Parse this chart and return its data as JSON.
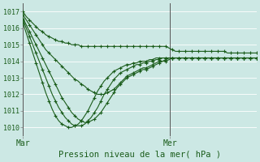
{
  "title": "Pression niveau de la mer( hPa )",
  "bg_color": "#cce8e4",
  "grid_color": "#ffffff",
  "line_color": "#1a5c1a",
  "ylim": [
    1009.5,
    1017.5
  ],
  "yticks": [
    1010,
    1011,
    1012,
    1013,
    1014,
    1015,
    1016,
    1017
  ],
  "xtick_labels": [
    "Mar",
    "Mer"
  ],
  "xtick_pos": [
    0,
    0.63
  ],
  "vline_pos": [
    0,
    0.63
  ],
  "num_steps": 73,
  "series": [
    [
      1017.0,
      1016.7,
      1016.5,
      1016.3,
      1016.1,
      1015.9,
      1015.8,
      1015.6,
      1015.5,
      1015.4,
      1015.3,
      1015.2,
      1015.2,
      1015.1,
      1015.1,
      1015.0,
      1015.0,
      1015.0,
      1014.9,
      1014.9,
      1014.9,
      1014.9,
      1014.9,
      1014.9,
      1014.9,
      1014.9,
      1014.9,
      1014.9,
      1014.9,
      1014.9,
      1014.9,
      1014.9,
      1014.9,
      1014.9,
      1014.9,
      1014.9,
      1014.9,
      1014.9,
      1014.9,
      1014.9,
      1014.9,
      1014.9,
      1014.9,
      1014.9,
      1014.9,
      1014.8,
      1014.7,
      1014.6,
      1014.6,
      1014.6,
      1014.6,
      1014.6,
      1014.6,
      1014.6,
      1014.6,
      1014.6,
      1014.6,
      1014.6,
      1014.6,
      1014.6,
      1014.6,
      1014.6,
      1014.6,
      1014.5,
      1014.5,
      1014.5,
      1014.5,
      1014.5,
      1014.5,
      1014.5,
      1014.5,
      1014.5,
      1014.5
    ],
    [
      1016.8,
      1016.5,
      1016.2,
      1015.9,
      1015.6,
      1015.3,
      1015.0,
      1014.7,
      1014.5,
      1014.3,
      1014.1,
      1013.9,
      1013.7,
      1013.5,
      1013.3,
      1013.1,
      1012.9,
      1012.8,
      1012.6,
      1012.5,
      1012.3,
      1012.2,
      1012.1,
      1012.0,
      1012.0,
      1012.0,
      1012.1,
      1012.2,
      1012.3,
      1012.5,
      1012.7,
      1012.9,
      1013.1,
      1013.2,
      1013.3,
      1013.4,
      1013.5,
      1013.6,
      1013.6,
      1013.7,
      1013.8,
      1013.9,
      1014.0,
      1014.0,
      1014.1,
      1014.2,
      1014.2,
      1014.2,
      1014.2,
      1014.2,
      1014.2,
      1014.2,
      1014.2,
      1014.2,
      1014.2,
      1014.2,
      1014.2,
      1014.2,
      1014.2,
      1014.2,
      1014.2,
      1014.2,
      1014.2,
      1014.2,
      1014.2,
      1014.2,
      1014.2,
      1014.2,
      1014.2,
      1014.2,
      1014.2,
      1014.2,
      1014.2
    ],
    [
      1016.6,
      1016.2,
      1015.8,
      1015.4,
      1015.0,
      1014.6,
      1014.2,
      1013.8,
      1013.4,
      1013.0,
      1012.6,
      1012.2,
      1011.8,
      1011.5,
      1011.2,
      1010.9,
      1010.7,
      1010.5,
      1010.4,
      1010.3,
      1010.3,
      1010.4,
      1010.5,
      1010.7,
      1010.9,
      1011.2,
      1011.5,
      1011.8,
      1012.1,
      1012.4,
      1012.6,
      1012.8,
      1013.0,
      1013.1,
      1013.2,
      1013.3,
      1013.4,
      1013.5,
      1013.5,
      1013.6,
      1013.7,
      1013.8,
      1013.9,
      1014.0,
      1014.0,
      1014.1,
      1014.2,
      1014.2,
      1014.2,
      1014.2,
      1014.2,
      1014.2,
      1014.2,
      1014.2,
      1014.2,
      1014.2,
      1014.2,
      1014.2,
      1014.2,
      1014.2,
      1014.2,
      1014.2,
      1014.2,
      1014.2,
      1014.2,
      1014.2,
      1014.2,
      1014.2,
      1014.2,
      1014.2,
      1014.2,
      1014.2,
      1014.2
    ],
    [
      1016.5,
      1016.0,
      1015.5,
      1015.0,
      1014.5,
      1014.0,
      1013.5,
      1013.0,
      1012.5,
      1012.0,
      1011.6,
      1011.2,
      1010.9,
      1010.6,
      1010.4,
      1010.2,
      1010.1,
      1010.1,
      1010.1,
      1010.2,
      1010.4,
      1010.6,
      1010.9,
      1011.2,
      1011.6,
      1012.0,
      1012.3,
      1012.6,
      1012.9,
      1013.1,
      1013.3,
      1013.4,
      1013.5,
      1013.6,
      1013.7,
      1013.8,
      1013.8,
      1013.9,
      1013.9,
      1014.0,
      1014.0,
      1014.1,
      1014.1,
      1014.2,
      1014.2,
      1014.2,
      1014.2,
      1014.2,
      1014.2,
      1014.2,
      1014.2,
      1014.2,
      1014.2,
      1014.2,
      1014.2,
      1014.2,
      1014.2,
      1014.2,
      1014.2,
      1014.2,
      1014.2,
      1014.2,
      1014.2,
      1014.2,
      1014.2,
      1014.2,
      1014.2,
      1014.2,
      1014.2,
      1014.2,
      1014.2,
      1014.2,
      1014.2
    ],
    [
      1016.3,
      1015.7,
      1015.1,
      1014.5,
      1013.9,
      1013.3,
      1012.7,
      1012.1,
      1011.6,
      1011.1,
      1010.7,
      1010.4,
      1010.2,
      1010.1,
      1010.0,
      1010.0,
      1010.1,
      1010.2,
      1010.4,
      1010.7,
      1011.0,
      1011.4,
      1011.8,
      1012.2,
      1012.5,
      1012.8,
      1013.0,
      1013.2,
      1013.4,
      1013.5,
      1013.6,
      1013.7,
      1013.8,
      1013.8,
      1013.9,
      1013.9,
      1014.0,
      1014.0,
      1014.0,
      1014.1,
      1014.1,
      1014.2,
      1014.2,
      1014.2,
      1014.2,
      1014.2,
      1014.2,
      1014.2,
      1014.2,
      1014.2,
      1014.2,
      1014.2,
      1014.2,
      1014.2,
      1014.2,
      1014.2,
      1014.2,
      1014.2,
      1014.2,
      1014.2,
      1014.2,
      1014.2,
      1014.2,
      1014.2,
      1014.2,
      1014.2,
      1014.2,
      1014.2,
      1014.2,
      1014.2,
      1014.2,
      1014.2,
      1014.2
    ]
  ]
}
